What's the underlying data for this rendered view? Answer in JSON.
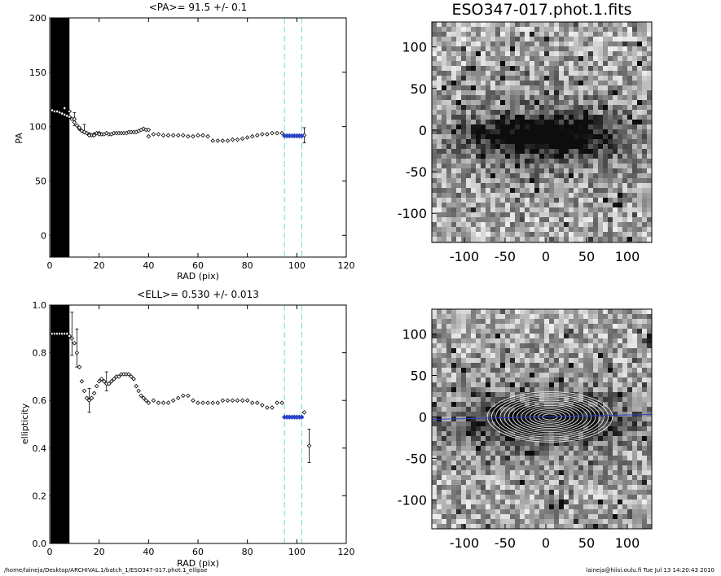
{
  "figure_title": "ESO347-017.phot.1.fits",
  "footer": {
    "path": "/home/laineja/Desktop/ARCHIVAL.1/batch_1/ESO347-017.phot.1_ellipse",
    "user_time": "laineja@hiisi.oulu.fi  Tue Jul 13 14:20:43 2010"
  },
  "colors": {
    "point": "#000000",
    "fit": "#2a44c8",
    "marker_line": "#66dddd"
  },
  "chart_data": [
    {
      "type": "scatter",
      "title": "<PA>=  91.5 +/-   0.1",
      "xlabel": "RAD (pix)",
      "ylabel": "PA",
      "xlim": [
        0,
        120
      ],
      "ylim": [
        -20,
        200
      ],
      "xticks": [
        "0",
        "20",
        "40",
        "60",
        "80",
        "100",
        "120"
      ],
      "yticks": [
        "0",
        "50",
        "100",
        "150",
        "200"
      ],
      "masked_region_x": [
        0,
        8
      ],
      "vlines_x": [
        95,
        102
      ],
      "series": [
        {
          "x": [
            1,
            2,
            3,
            4,
            5,
            6,
            7,
            8,
            9,
            10,
            11,
            12,
            13,
            14,
            15,
            16,
            17,
            18,
            19,
            20,
            21,
            22,
            23,
            24,
            25,
            26,
            27,
            28,
            29,
            30,
            31,
            32,
            33,
            34,
            35,
            36,
            37,
            38,
            39,
            40,
            42,
            44,
            46,
            48,
            50,
            52,
            54,
            56,
            58,
            60,
            62,
            64,
            66,
            68,
            70,
            72,
            74,
            76,
            78,
            80,
            82,
            84,
            86,
            88,
            90,
            92,
            94
          ],
          "y": [
            115,
            114,
            114,
            113,
            112,
            111,
            110,
            109,
            107,
            104,
            101,
            98,
            96,
            95,
            94,
            93,
            92,
            93,
            94,
            94,
            93,
            93,
            94,
            93,
            93,
            94,
            94,
            94,
            94,
            94,
            94,
            95,
            95,
            95,
            95,
            96,
            97,
            98,
            97,
            97,
            93,
            93,
            92,
            92,
            92,
            92,
            92,
            91,
            91,
            92,
            92,
            91,
            87,
            87,
            87,
            87,
            88,
            88,
            89,
            90,
            91,
            92,
            93,
            93,
            94,
            94,
            94
          ]
        },
        {
          "x": [
            6,
            8,
            10,
            12,
            14,
            16,
            18,
            20,
            40,
            103
          ],
          "y": [
            117,
            114,
            107,
            99,
            95,
            92,
            92,
            93,
            91,
            92
          ]
        }
      ],
      "fit": {
        "x": [
          95,
          96,
          97,
          98,
          99,
          100,
          101,
          102
        ],
        "y": [
          91.5,
          91.5,
          91.5,
          91.5,
          91.5,
          91.5,
          91.5,
          91.5
        ]
      },
      "errors": [
        {
          "x": 10,
          "y": 107,
          "e": 6
        },
        {
          "x": 14,
          "y": 98,
          "e": 4
        },
        {
          "x": 103,
          "y": 92,
          "e": 7
        }
      ]
    },
    {
      "type": "scatter",
      "title": "<ELL>= 0.530 +/-  0.013",
      "xlabel": "RAD (pix)",
      "ylabel": "ellipticity",
      "xlim": [
        0,
        120
      ],
      "ylim": [
        0,
        1
      ],
      "xticks": [
        "0",
        "20",
        "40",
        "60",
        "80",
        "100",
        "120"
      ],
      "yticks": [
        "0.0",
        "0.2",
        "0.4",
        "0.6",
        "0.8",
        "1.0"
      ],
      "masked_region_x": [
        0,
        8
      ],
      "vlines_x": [
        95,
        102
      ],
      "series": [
        {
          "x": [
            1,
            2,
            3,
            4,
            5,
            6,
            7,
            8,
            9,
            10,
            11,
            12,
            13,
            14,
            15,
            16,
            17,
            18,
            19,
            20,
            21,
            22,
            23,
            24,
            25,
            26,
            27,
            28,
            29,
            30,
            31,
            32,
            33,
            34,
            35,
            36,
            37,
            38,
            39,
            40,
            42,
            44,
            46,
            48,
            50,
            52,
            54,
            56,
            58,
            60,
            62,
            64,
            66,
            68,
            70,
            72,
            74,
            76,
            78,
            80,
            82,
            84,
            86,
            88,
            90,
            92,
            94
          ],
          "y": [
            0.88,
            0.88,
            0.88,
            0.88,
            0.88,
            0.88,
            0.88,
            0.87,
            0.86,
            0.84,
            0.8,
            0.74,
            0.68,
            0.64,
            0.61,
            0.6,
            0.61,
            0.63,
            0.66,
            0.68,
            0.69,
            0.68,
            0.67,
            0.67,
            0.68,
            0.69,
            0.7,
            0.7,
            0.71,
            0.71,
            0.71,
            0.71,
            0.7,
            0.69,
            0.66,
            0.64,
            0.62,
            0.61,
            0.6,
            0.59,
            0.6,
            0.59,
            0.59,
            0.59,
            0.6,
            0.61,
            0.62,
            0.62,
            0.6,
            0.59,
            0.59,
            0.59,
            0.59,
            0.59,
            0.6,
            0.6,
            0.6,
            0.6,
            0.6,
            0.6,
            0.59,
            0.59,
            0.58,
            0.57,
            0.57,
            0.59,
            0.59
          ]
        },
        {
          "x": [
            103,
            105
          ],
          "y": [
            0.55,
            0.41
          ]
        }
      ],
      "fit": {
        "x": [
          95,
          96,
          97,
          98,
          99,
          100,
          101,
          102
        ],
        "y": [
          0.53,
          0.53,
          0.53,
          0.53,
          0.53,
          0.53,
          0.53,
          0.53
        ]
      },
      "errors": [
        {
          "x": 9,
          "y": 0.88,
          "e": 0.09
        },
        {
          "x": 11,
          "y": 0.82,
          "e": 0.08
        },
        {
          "x": 16,
          "y": 0.6,
          "e": 0.05
        },
        {
          "x": 23,
          "y": 0.68,
          "e": 0.04
        },
        {
          "x": 105,
          "y": 0.41,
          "e": 0.07
        }
      ]
    },
    {
      "type": "heatmap",
      "name": "image",
      "xticks": [
        "-100",
        "-50",
        "0",
        "50",
        "100"
      ],
      "yticks": [
        "100",
        "50",
        "0",
        "-50",
        "-100"
      ],
      "xlim": [
        -140,
        130
      ],
      "ylim": [
        -135,
        130
      ]
    },
    {
      "type": "heatmap",
      "name": "image-with-isophotes",
      "xticks": [
        "-100",
        "-50",
        "0",
        "50",
        "100"
      ],
      "yticks": [
        "100",
        "50",
        "0",
        "-50",
        "-100"
      ],
      "xlim": [
        -140,
        130
      ],
      "ylim": [
        -135,
        130
      ]
    }
  ]
}
